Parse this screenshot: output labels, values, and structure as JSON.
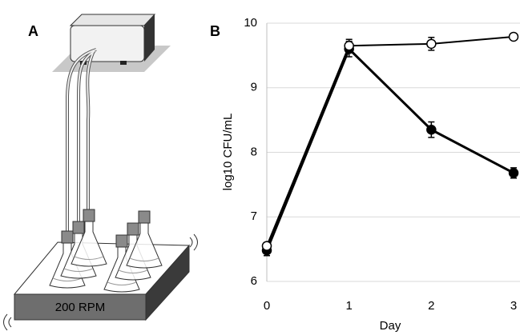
{
  "panel_labels": [
    "A",
    "B"
  ],
  "diagram": {
    "platform_label": "200 RPM"
  },
  "chart_data": {
    "type": "line",
    "x_label": "Day",
    "y_label": "log10 CFU/mL",
    "x": [
      0,
      1,
      2,
      3
    ],
    "series": [
      {
        "color": "#000000",
        "marker_fill": "#000000",
        "values": [
          6.48,
          9.6,
          8.35,
          7.68
        ],
        "errors": [
          0.08,
          0.12,
          0.12,
          0.08
        ]
      },
      {
        "color": "#000000",
        "marker_fill": "#ffffff",
        "values": [
          6.55,
          9.65,
          9.68,
          9.79
        ],
        "errors": [
          0.05,
          0.1,
          0.1,
          0.05
        ]
      }
    ],
    "xlim": [
      0,
      3
    ],
    "xticks": [
      0,
      1,
      2,
      3
    ],
    "ylim": [
      6,
      10
    ],
    "yticks": [
      6,
      7,
      8,
      9,
      10
    ],
    "grid": true
  }
}
